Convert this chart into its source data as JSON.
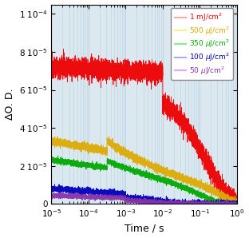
{
  "xlabel": "Time / s",
  "ylabel": "ΔO. D.",
  "xlim": [
    1e-05,
    1.0
  ],
  "ylim": [
    0,
    0.000105
  ],
  "ytick_vals": [
    0,
    2e-05,
    4e-05,
    6e-05,
    8e-05,
    0.0001
  ],
  "legend_colors_line": [
    "#ffaaaa",
    "#ffee88",
    "#88ee88",
    "#aaaaee",
    "#ddaaee"
  ],
  "legend_colors_text": [
    "#ee0000",
    "#ddaa00",
    "#00aa00",
    "#0000bb",
    "#8833aa"
  ],
  "curve_colors": [
    "#ee0000",
    "#ddaa00",
    "#00aa00",
    "#0000bb",
    "#8833aa"
  ],
  "background_color": "#dce8f0",
  "plot_bg_color": "#dce8f0",
  "grid_color": "#b8cfe0",
  "figsize": [
    3.12,
    2.98
  ],
  "dpi": 100
}
